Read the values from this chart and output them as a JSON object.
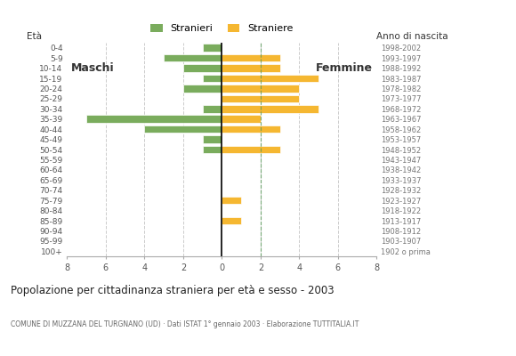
{
  "age_groups": [
    "100+",
    "95-99",
    "90-94",
    "85-89",
    "80-84",
    "75-79",
    "70-74",
    "65-69",
    "60-64",
    "55-59",
    "50-54",
    "45-49",
    "40-44",
    "35-39",
    "30-34",
    "25-29",
    "20-24",
    "15-19",
    "10-14",
    "5-9",
    "0-4"
  ],
  "birth_years": [
    "1902 o prima",
    "1903-1907",
    "1908-1912",
    "1913-1917",
    "1918-1922",
    "1923-1927",
    "1928-1932",
    "1933-1937",
    "1938-1942",
    "1943-1947",
    "1948-1952",
    "1953-1957",
    "1958-1962",
    "1963-1967",
    "1968-1972",
    "1973-1977",
    "1978-1982",
    "1983-1987",
    "1988-1992",
    "1993-1997",
    "1998-2002"
  ],
  "males": [
    0,
    0,
    0,
    0,
    0,
    0,
    0,
    0,
    0,
    0,
    1,
    1,
    4,
    7,
    1,
    0,
    2,
    1,
    2,
    3,
    1
  ],
  "females": [
    0,
    0,
    0,
    1,
    0,
    1,
    0,
    0,
    0,
    0,
    3,
    0,
    3,
    2,
    5,
    4,
    4,
    5,
    3,
    3,
    0
  ],
  "male_color": "#7aac5d",
  "female_color": "#f5b731",
  "title": "Popolazione per cittadinanza straniera per età e sesso - 2003",
  "subtitle": "COMUNE DI MUZZANA DEL TURGNANO (UD) · Dati ISTAT 1° gennaio 2003 · Elaborazione TUTTITALIA.IT",
  "xlabel_left": "Maschi",
  "xlabel_right": "Femmine",
  "ylabel": "Età",
  "ylabel_right": "Anno di nascita",
  "legend_male": "Stranieri",
  "legend_female": "Straniere",
  "xlim": 8,
  "background_color": "#ffffff",
  "grid_color": "#cccccc",
  "dashed_line_color": "#5a9a5a",
  "bar_height": 0.75
}
